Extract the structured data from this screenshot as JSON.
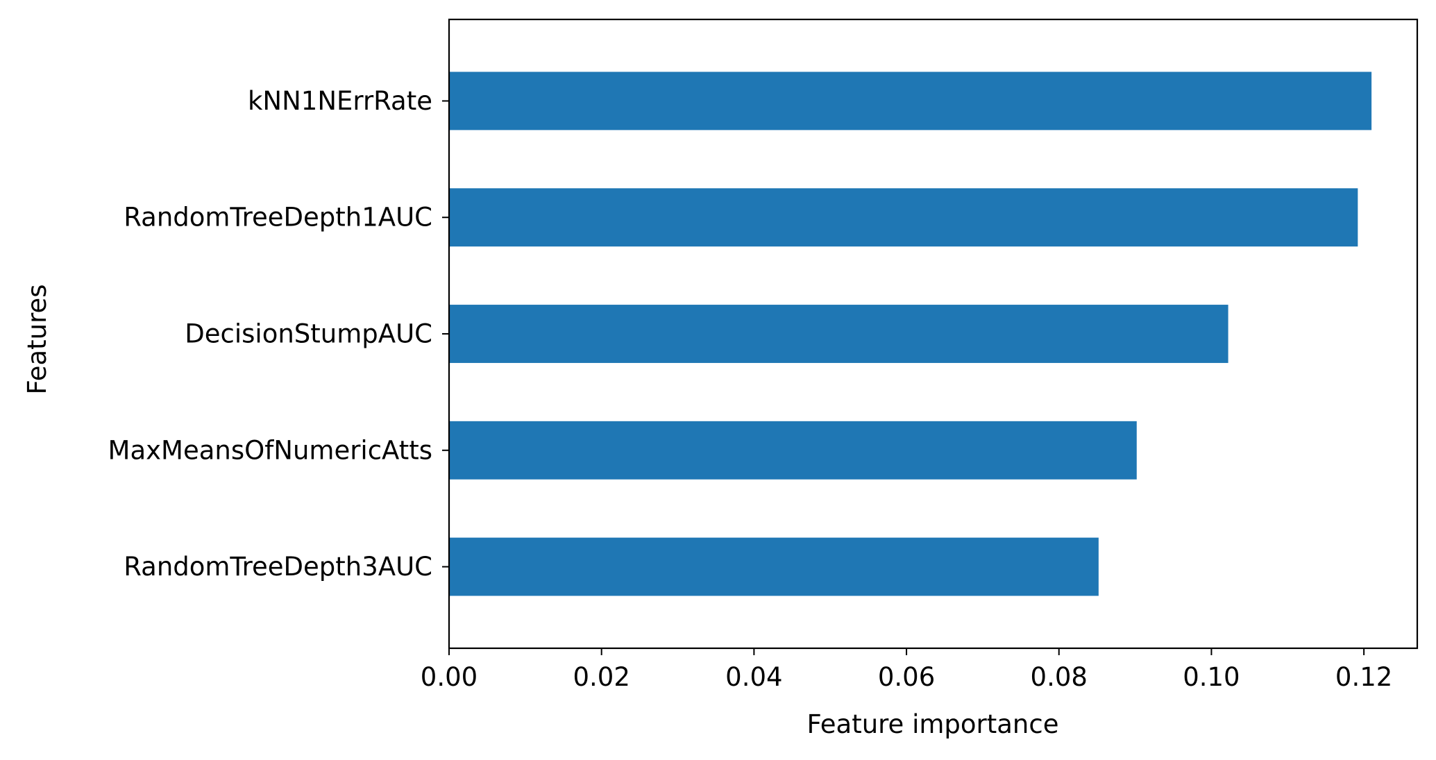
{
  "chart_data": {
    "type": "bar",
    "orientation": "horizontal",
    "categories": [
      "kNN1NErrRate",
      "RandomTreeDepth1AUC",
      "DecisionStumpAUC",
      "MaxMeansOfNumericAtts",
      "RandomTreeDepth3AUC"
    ],
    "values": [
      0.121,
      0.1192,
      0.1022,
      0.0902,
      0.0852
    ],
    "xlabel": "Feature importance",
    "ylabel": "Features",
    "xlim": [
      0,
      0.127
    ],
    "xticks": [
      "0.00",
      "0.02",
      "0.04",
      "0.06",
      "0.08",
      "0.10",
      "0.12"
    ],
    "grid": false,
    "legend": "none",
    "colors": {
      "bar": "#1f77b4"
    }
  }
}
